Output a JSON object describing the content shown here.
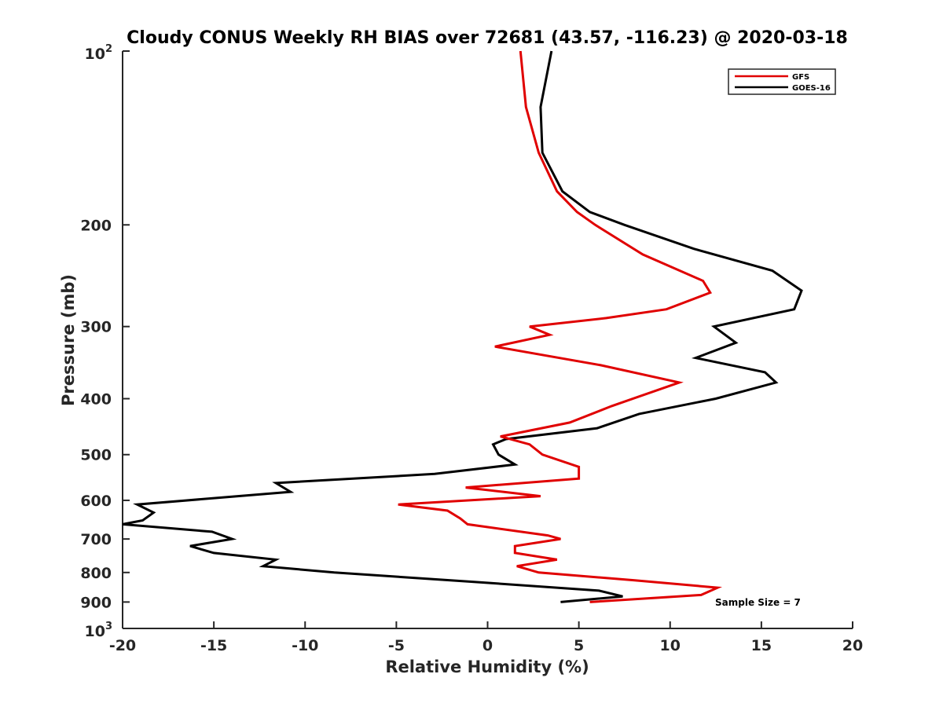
{
  "chart_data": {
    "type": "line",
    "title": "Cloudy CONUS Weekly RH BIAS over 72681 (43.57, -116.23) @ 2020-03-18",
    "xlabel": "Relative Humidity (%)",
    "ylabel": "Pressure (mb)",
    "xlim": [
      -20,
      20
    ],
    "ylim": [
      100,
      1000
    ],
    "y_scale": "log",
    "y_reversed": true,
    "grid": false,
    "legend_position": "top-right",
    "annotation": "Sample Size = 7",
    "x_ticks": [
      {
        "value": -20,
        "label": "-20"
      },
      {
        "value": -15,
        "label": "-15"
      },
      {
        "value": -10,
        "label": "-10"
      },
      {
        "value": -5,
        "label": "-5"
      },
      {
        "value": 0,
        "label": "0"
      },
      {
        "value": 5,
        "label": "5"
      },
      {
        "value": 10,
        "label": "10"
      },
      {
        "value": 15,
        "label": "15"
      },
      {
        "value": 20,
        "label": "20"
      }
    ],
    "y_ticks": [
      {
        "value": 200,
        "label": "200"
      },
      {
        "value": 300,
        "label": "300"
      },
      {
        "value": 400,
        "label": "400"
      },
      {
        "value": 500,
        "label": "500"
      },
      {
        "value": 600,
        "label": "600"
      },
      {
        "value": 700,
        "label": "700"
      },
      {
        "value": 800,
        "label": "800"
      },
      {
        "value": 900,
        "label": "900"
      }
    ],
    "y_tick_top": {
      "value": 100,
      "base": "10",
      "exp": "2"
    },
    "y_tick_bottom": {
      "value": 1000,
      "base": "10",
      "exp": "3"
    },
    "series": [
      {
        "name": "GFS",
        "color": "#e00000",
        "points": [
          [
            1.8,
            100
          ],
          [
            2.1,
            125
          ],
          [
            2.8,
            150
          ],
          [
            3.8,
            175
          ],
          [
            4.9,
            190
          ],
          [
            5.9,
            200
          ],
          [
            8.5,
            225
          ],
          [
            11.8,
            250
          ],
          [
            12.2,
            262
          ],
          [
            9.8,
            280
          ],
          [
            6.5,
            290
          ],
          [
            2.3,
            300
          ],
          [
            3.4,
            310
          ],
          [
            0.4,
            325
          ],
          [
            6.2,
            350
          ],
          [
            10.5,
            375
          ],
          [
            6.8,
            412
          ],
          [
            4.5,
            440
          ],
          [
            0.7,
            465
          ],
          [
            2.3,
            480
          ],
          [
            3.0,
            500
          ],
          [
            5.0,
            525
          ],
          [
            5.0,
            550
          ],
          [
            -1.2,
            570
          ],
          [
            2.9,
            590
          ],
          [
            -4.9,
            610
          ],
          [
            -2.2,
            625
          ],
          [
            -1.5,
            645
          ],
          [
            -1.1,
            660
          ],
          [
            3.3,
            690
          ],
          [
            4.0,
            700
          ],
          [
            1.5,
            720
          ],
          [
            1.5,
            740
          ],
          [
            3.8,
            760
          ],
          [
            1.6,
            780
          ],
          [
            2.8,
            800
          ],
          [
            8.0,
            825
          ],
          [
            12.6,
            850
          ],
          [
            11.7,
            875
          ],
          [
            5.6,
            900
          ]
        ]
      },
      {
        "name": "GOES-16",
        "color": "#000000",
        "points": [
          [
            3.5,
            100
          ],
          [
            2.9,
            125
          ],
          [
            3.0,
            150
          ],
          [
            4.1,
            175
          ],
          [
            5.6,
            190
          ],
          [
            7.5,
            200
          ],
          [
            11.3,
            220
          ],
          [
            15.6,
            240
          ],
          [
            17.2,
            260
          ],
          [
            16.8,
            280
          ],
          [
            12.4,
            300
          ],
          [
            13.6,
            320
          ],
          [
            11.4,
            340
          ],
          [
            15.2,
            360
          ],
          [
            15.8,
            375
          ],
          [
            12.5,
            400
          ],
          [
            8.3,
            425
          ],
          [
            6.0,
            450
          ],
          [
            1.0,
            470
          ],
          [
            0.3,
            480
          ],
          [
            0.6,
            500
          ],
          [
            1.5,
            520
          ],
          [
            -2.9,
            540
          ],
          [
            -11.6,
            560
          ],
          [
            -10.8,
            580
          ],
          [
            -19.2,
            610
          ],
          [
            -18.3,
            630
          ],
          [
            -18.9,
            650
          ],
          [
            -20.0,
            660
          ],
          [
            -15.1,
            680
          ],
          [
            -14.0,
            700
          ],
          [
            -16.3,
            720
          ],
          [
            -15.0,
            740
          ],
          [
            -11.6,
            760
          ],
          [
            -12.3,
            780
          ],
          [
            -8.4,
            800
          ],
          [
            -0.9,
            830
          ],
          [
            6.1,
            860
          ],
          [
            7.4,
            880
          ],
          [
            4.0,
            900
          ]
        ]
      }
    ]
  }
}
